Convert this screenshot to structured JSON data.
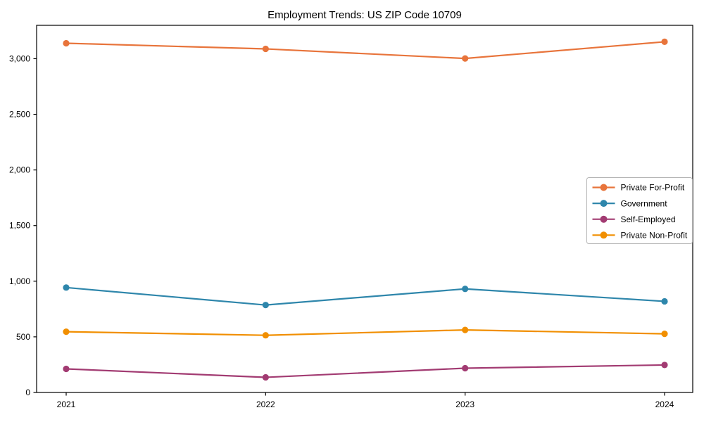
{
  "figure": {
    "background": "#ffffff",
    "spine_color": "#000000",
    "legend_border_color": "#b3b3b3",
    "legend_background": "#ffffff"
  },
  "chart_data": {
    "type": "line",
    "title": "Employment Trends: US ZIP Code 10709",
    "xlabel": "",
    "ylabel": "",
    "categories": [
      "2021",
      "2022",
      "2023",
      "2024"
    ],
    "series": [
      {
        "name": "Private For-Profit",
        "color": "#E8743B",
        "values": [
          3139,
          3088,
          3002,
          3152
        ]
      },
      {
        "name": "Government",
        "color": "#2E86AB",
        "values": [
          943,
          786,
          931,
          819
        ]
      },
      {
        "name": "Self-Employed",
        "color": "#A23B72",
        "values": [
          212,
          136,
          218,
          247
        ]
      },
      {
        "name": "Private Non-Profit",
        "color": "#F18F01",
        "values": [
          546,
          514,
          562,
          527
        ]
      }
    ],
    "ylim": [
      0,
      3300
    ],
    "y_ticks": [
      {
        "value": 0,
        "label": "0"
      },
      {
        "value": 500,
        "label": "500"
      },
      {
        "value": 1000,
        "label": "1,000"
      },
      {
        "value": 1500,
        "label": "1,500"
      },
      {
        "value": 2000,
        "label": "2,000"
      },
      {
        "value": 2500,
        "label": "2,500"
      },
      {
        "value": 3000,
        "label": "3,000"
      }
    ],
    "grid": false,
    "legend_position": "center-right",
    "marker": "circle"
  }
}
